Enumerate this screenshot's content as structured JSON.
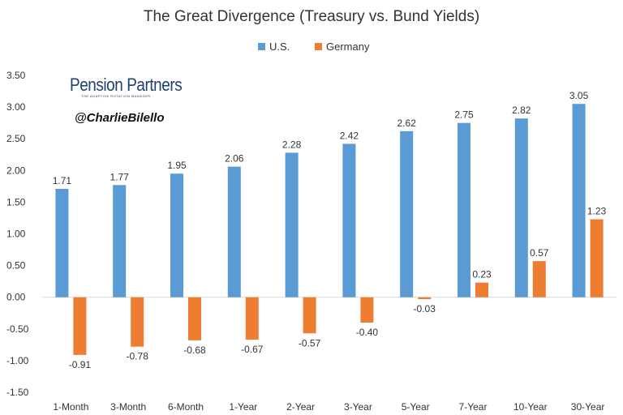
{
  "chart_data": {
    "type": "bar",
    "title": "The Great Divergence (Treasury vs. Bund Yields)",
    "categories": [
      "1-Month",
      "3-Month",
      "6-Month",
      "1-Year",
      "2-Year",
      "3-Year",
      "5-Year",
      "7-Year",
      "10-Year",
      "30-Year"
    ],
    "series": [
      {
        "name": "U.S.",
        "color": "#5b9bd5",
        "values": [
          1.71,
          1.77,
          1.95,
          2.06,
          2.28,
          2.42,
          2.62,
          2.75,
          2.82,
          3.05
        ]
      },
      {
        "name": "Germany",
        "color": "#ed7d31",
        "values": [
          -0.91,
          -0.78,
          -0.68,
          -0.67,
          -0.57,
          -0.4,
          -0.03,
          0.23,
          0.57,
          1.23
        ]
      }
    ],
    "ylim": [
      -1.5,
      3.5
    ],
    "yticks": [
      "3.50",
      "3.00",
      "2.50",
      "2.00",
      "1.50",
      "1.00",
      "0.50",
      "0.00",
      "-0.50",
      "-1.00",
      "-1.50"
    ],
    "ytick_values": [
      3.5,
      3.0,
      2.5,
      2.0,
      1.5,
      1.0,
      0.5,
      0.0,
      -0.5,
      -1.0,
      -1.5
    ],
    "legend_position": "top-center",
    "grid": false
  },
  "watermark": {
    "brand": "Pension Partners",
    "tagline": "THE ADAPTIVE ROTATION MANAGER",
    "handle": "@CharlieBilello"
  }
}
